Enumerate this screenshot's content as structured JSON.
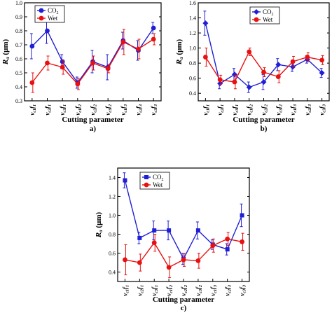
{
  "chart_data": [
    {
      "panel": "a)",
      "type": "line",
      "xlabel": "Cutting parameter",
      "ylabel": "Ra (μm)",
      "ylim": [
        0.3,
        1.0
      ],
      "yticks": [
        "0.3",
        "0.4",
        "0.5",
        "0.6",
        "0.7",
        "0.8",
        "0.9",
        "1.0"
      ],
      "legend_position": "top-left",
      "categories": [
        "vc1f1",
        "vc2f1",
        "vc3f1",
        "vc1f2",
        "vc2f2",
        "vc3f2",
        "vc1f3",
        "vc2f3",
        "vc3f3"
      ],
      "category_labels": [
        [
          "v",
          "c1",
          "f",
          "1"
        ],
        [
          "v",
          "c2",
          "f",
          "1"
        ],
        [
          "v",
          "c3",
          "f",
          "1"
        ],
        [
          "v",
          "c1",
          "f",
          "2"
        ],
        [
          "v",
          "c2",
          "f",
          "2"
        ],
        [
          "v",
          "c3",
          "f",
          "2"
        ],
        [
          "v",
          "c1",
          "f",
          "3"
        ],
        [
          "v",
          "c2",
          "f",
          "3"
        ],
        [
          "v",
          "c3",
          "f",
          "3"
        ]
      ],
      "series": [
        {
          "name": "CO2",
          "name_main": "CO",
          "name_sub": "2",
          "color": "#1f1fd6",
          "marker": "circle",
          "values": [
            0.69,
            0.8,
            0.58,
            0.43,
            0.58,
            0.54,
            0.73,
            0.66,
            0.82
          ],
          "errors": [
            0.09,
            0.09,
            0.05,
            0.04,
            0.08,
            0.09,
            0.06,
            0.07,
            0.04
          ]
        },
        {
          "name": "Wet",
          "color": "#e81010",
          "marker": "circle",
          "values": [
            0.43,
            0.57,
            0.54,
            0.42,
            0.57,
            0.53,
            0.72,
            0.67,
            0.74
          ],
          "errors": [
            0.07,
            0.05,
            0.05,
            0.04,
            0.05,
            0.03,
            0.09,
            0.07,
            0.04
          ]
        }
      ]
    },
    {
      "panel": "b)",
      "type": "line",
      "xlabel": "Cutting parameter",
      "ylabel": "Ra (μm)",
      "ylim": [
        0.3,
        1.6
      ],
      "yticks": [
        "0.4",
        "0.6",
        "0.8",
        "1.0",
        "1.2",
        "1.4",
        "1.6"
      ],
      "legend_position": "top-center",
      "categories": [
        "vc1f1",
        "vc2f1",
        "vc3f1",
        "vc1f2",
        "vc2f2",
        "vc3f2",
        "vc1f3",
        "vc2f3",
        "vc3f3"
      ],
      "category_labels": [
        [
          "v",
          "c1",
          "f",
          "1"
        ],
        [
          "v",
          "c2",
          "f",
          "1"
        ],
        [
          "v",
          "c3",
          "f",
          "1"
        ],
        [
          "v",
          "c1",
          "f",
          "2"
        ],
        [
          "v",
          "c2",
          "f",
          "2"
        ],
        [
          "v",
          "c3",
          "f",
          "2"
        ],
        [
          "v",
          "c1",
          "f",
          "3"
        ],
        [
          "v",
          "c2",
          "f",
          "3"
        ],
        [
          "v",
          "c3",
          "f",
          "3"
        ]
      ],
      "series": [
        {
          "name": "CO2",
          "name_main": "CO",
          "name_sub": "2",
          "color": "#1f1fd6",
          "marker": "diamond",
          "values": [
            1.33,
            0.53,
            0.65,
            0.48,
            0.55,
            0.78,
            0.75,
            0.85,
            0.67
          ],
          "errors": [
            0.16,
            0.07,
            0.08,
            0.07,
            0.1,
            0.08,
            0.06,
            0.05,
            0.06
          ]
        },
        {
          "name": "Wet",
          "color": "#e81010",
          "marker": "circle",
          "values": [
            0.88,
            0.58,
            0.55,
            0.95,
            0.68,
            0.62,
            0.82,
            0.88,
            0.84
          ],
          "errors": [
            0.12,
            0.06,
            0.09,
            0.05,
            0.06,
            0.08,
            0.07,
            0.06,
            0.06
          ]
        }
      ]
    },
    {
      "panel": "c)",
      "type": "line",
      "xlabel": "Cutting parameter",
      "ylabel": "Ra (μm)",
      "ylim": [
        0.3,
        1.5
      ],
      "yticks": [
        "0.4",
        "0.6",
        "0.8",
        "1.0",
        "1.2",
        "1.4"
      ],
      "legend_position": "top-center",
      "categories": [
        "vc1f1",
        "vc2f1",
        "vc3f1",
        "vc1f2",
        "vc2f2",
        "vc3f2",
        "vc1f3",
        "vc2f3",
        "vc3f3"
      ],
      "category_labels": [
        [
          "v",
          "c1",
          "f",
          "1"
        ],
        [
          "v",
          "c2",
          "f",
          "1"
        ],
        [
          "v",
          "c3",
          "f",
          "1"
        ],
        [
          "v",
          "c1",
          "f",
          "2"
        ],
        [
          "v",
          "c2",
          "f",
          "2"
        ],
        [
          "v",
          "c3",
          "f",
          "2"
        ],
        [
          "v",
          "c1",
          "f",
          "3"
        ],
        [
          "v",
          "c2",
          "f",
          "3"
        ],
        [
          "v",
          "c3",
          "f",
          "3"
        ]
      ],
      "series": [
        {
          "name": "CO2",
          "name_main": "CO",
          "name_sub": "2",
          "color": "#1f1fd6",
          "marker": "square",
          "values": [
            1.37,
            0.76,
            0.84,
            0.84,
            0.54,
            0.84,
            0.69,
            0.64,
            1.0
          ],
          "errors": [
            0.08,
            0.06,
            0.1,
            0.1,
            0.06,
            0.09,
            0.05,
            0.06,
            0.12
          ]
        },
        {
          "name": "Wet",
          "color": "#e81010",
          "marker": "circle",
          "values": [
            0.53,
            0.5,
            0.71,
            0.45,
            0.53,
            0.52,
            0.68,
            0.75,
            0.72
          ],
          "errors": [
            0.16,
            0.09,
            0.09,
            0.11,
            0.07,
            0.08,
            0.07,
            0.07,
            0.09
          ]
        }
      ]
    }
  ]
}
